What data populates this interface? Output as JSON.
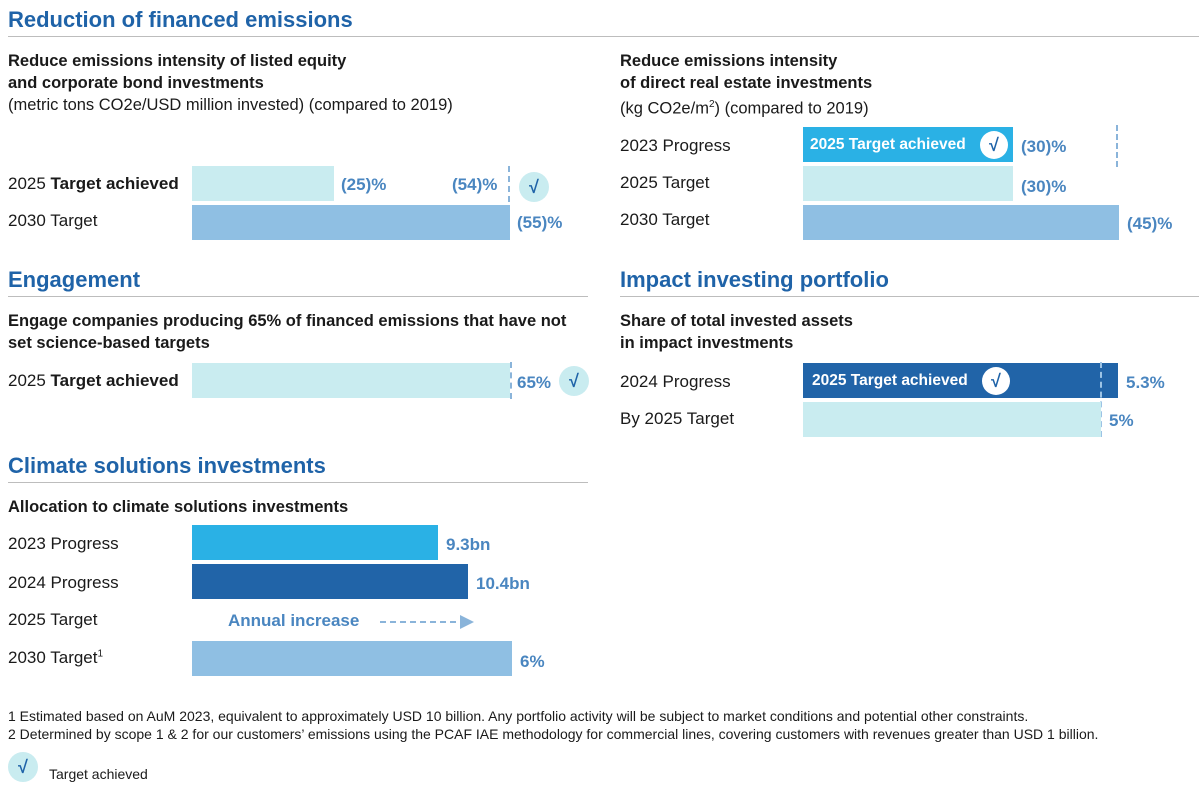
{
  "sections": {
    "financed": {
      "title": "Reduction of financed emissions",
      "left": {
        "heading_line1": "Reduce emissions intensity of listed equity",
        "heading_line2": "and corporate bond investments",
        "note": "(metric tons CO2e/USD million invested) (compared to 2019)",
        "rows": [
          {
            "label_prefix": "2025 ",
            "label_bold": "Target achieved",
            "value_label": "(25)%",
            "value": -25,
            "progress_label": "(54)%",
            "progress_value": -54,
            "achieved": true
          },
          {
            "label_prefix": "2030 Target",
            "label_bold": "",
            "value_label": "(55)%",
            "value": -55
          }
        ]
      },
      "right": {
        "heading_line1": "Reduce emissions intensity",
        "heading_line2": "of direct real estate investments",
        "note_prefix": "(kg CO2e/m",
        "note_sup": "2",
        "note_suffix": ") (compared to 2019)",
        "rows": [
          {
            "label": "2023 Progress",
            "inbar_text": "2025 Target achieved",
            "value_label": "(30)%",
            "value": -30,
            "achieved": true
          },
          {
            "label": "2025 Target",
            "value_label": "(30)%",
            "value": -30
          },
          {
            "label": "2030 Target",
            "value_label": "(45)%",
            "value": -45
          }
        ]
      }
    },
    "engagement": {
      "title": "Engagement",
      "heading_line1": "Engage companies producing 65% of financed emissions that have not",
      "heading_line2": "set science-based targets",
      "row": {
        "label_prefix": "2025 ",
        "label_bold": "Target achieved",
        "value_label": "65%",
        "value": 65,
        "achieved": true
      }
    },
    "impact": {
      "title": "Impact investing portfolio",
      "heading_line1": "Share of total invested assets",
      "heading_line2": "in impact investments",
      "rows": [
        {
          "label": "2024 Progress",
          "inbar_text": "2025 Target achieved",
          "value_label": "5.3%",
          "value": 5.3,
          "achieved": true
        },
        {
          "label": "By 2025 Target",
          "value_label": "5%",
          "value": 5
        }
      ]
    },
    "climate": {
      "title": "Climate solutions investments",
      "heading": "Allocation to climate solutions investments",
      "rows": [
        {
          "label": "2023 Progress",
          "value_label": "9.3bn",
          "value": 9.3
        },
        {
          "label": "2024 Progress",
          "value_label": "10.4bn",
          "value": 10.4
        },
        {
          "label": "2025 Target",
          "annual_text": "Annual increase"
        },
        {
          "label": "2030 Target",
          "label_sup": "1",
          "value_label": "6%",
          "value": 6
        }
      ]
    }
  },
  "footnotes": [
    "1  Estimated based on AuM 2023, equivalent to approximately USD 10 billion. Any portfolio activity will be subject to market conditions and potential other constraints.",
    "2  Determined by scope 1 & 2 for our customers’ emissions using the PCAF IAE methodology for commercial lines, covering customers with revenues greater than USD 1 billion."
  ],
  "legend": {
    "check_glyph": "√",
    "label": "Target achieved"
  },
  "colors": {
    "title_blue": "#1f63a8",
    "value_blue": "#4a86c0",
    "light_cyan": "#c9ecf0",
    "mid_blue": "#8fbfe3",
    "cyan": "#2ab1e5",
    "dark_blue": "#2164a8"
  },
  "chart_data": [
    {
      "type": "bar",
      "title": "Reduce emissions intensity of listed equity and corporate bond investments",
      "ylabel": "metric tons CO2e/USD million invested (compared to 2019)",
      "categories": [
        "2025 Target achieved",
        "2030 Target"
      ],
      "series": [
        {
          "name": "Target",
          "values": [
            -25,
            -55
          ]
        },
        {
          "name": "Progress",
          "values": [
            -54,
            null
          ]
        }
      ]
    },
    {
      "type": "bar",
      "title": "Reduce emissions intensity of direct real estate investments",
      "ylabel": "kg CO2e/m2 (compared to 2019)",
      "categories": [
        "2023 Progress",
        "2025 Target",
        "2030 Target"
      ],
      "values": [
        -30,
        -30,
        -45
      ]
    },
    {
      "type": "bar",
      "title": "Engage companies producing 65% of financed emissions that have not set science-based targets",
      "categories": [
        "2025 Target achieved"
      ],
      "values": [
        65
      ]
    },
    {
      "type": "bar",
      "title": "Share of total invested assets in impact investments",
      "categories": [
        "2024 Progress",
        "By 2025 Target"
      ],
      "values": [
        5.3,
        5
      ]
    },
    {
      "type": "bar",
      "title": "Allocation to climate solutions investments",
      "categories": [
        "2023 Progress",
        "2024 Progress",
        "2025 Target",
        "2030 Target"
      ],
      "values": [
        9.3,
        10.4,
        null,
        6
      ],
      "units": [
        "bn",
        "bn",
        "Annual increase",
        "%"
      ]
    }
  ]
}
